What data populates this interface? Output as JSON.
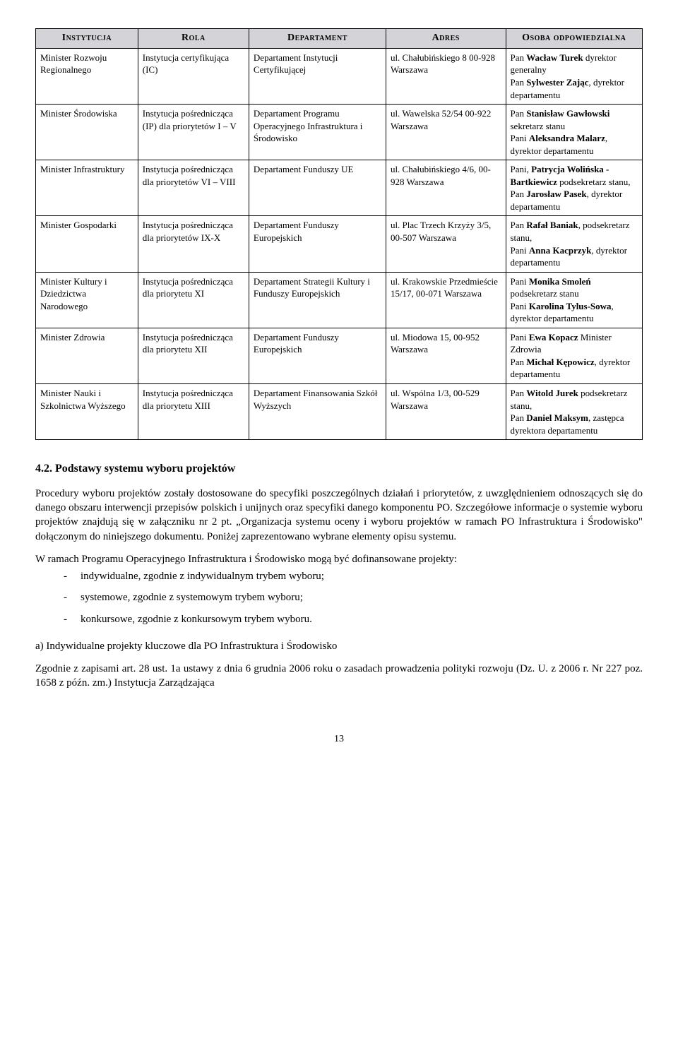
{
  "table": {
    "headers": [
      "Instytucja",
      "Rola",
      "Departament",
      "Adres",
      "Osoba odpowiedzialna"
    ],
    "rows": [
      {
        "instytucja": "Minister Rozwoju Regionalnego",
        "rola": "Instytucja certyfikująca (IC)",
        "departament": "Departament Instytucji Certyfikującej",
        "adres": "ul. Chałubińskiego 8 00-928 Warszawa",
        "osoba": [
          {
            "pre": "Pan ",
            "bold": "Wacław Turek",
            "post": " dyrektor generalny"
          },
          {
            "pre": "Pan ",
            "bold": "Sylwester Zając",
            "post": ", dyrektor departamentu"
          }
        ]
      },
      {
        "instytucja": "Minister Środowiska",
        "rola": "Instytucja pośrednicząca (IP) dla priorytetów I – V",
        "departament": "Departament Programu Operacyjnego Infrastruktura i Środowisko",
        "adres": "ul. Wawelska 52/54 00-922 Warszawa",
        "osoba": [
          {
            "pre": "Pan ",
            "bold": "Stanisław Gawłowski",
            "post": " sekretarz stanu"
          },
          {
            "pre": "Pani ",
            "bold": "Aleksandra Malarz",
            "post": ", dyrektor departamentu"
          }
        ]
      },
      {
        "instytucja": "Minister Infrastruktury",
        "rola": "Instytucja pośrednicząca dla priorytetów VI – VIII",
        "departament": "Departament Funduszy UE",
        "adres": "ul. Chałubińskiego 4/6, 00-928 Warszawa",
        "osoba": [
          {
            "pre": "Pani, ",
            "bold": "Patrycja Wolińska - Bartkiewicz",
            "post": " podsekretarz stanu,"
          },
          {
            "pre": "Pan ",
            "bold": "Jarosław Pasek",
            "post": ", dyrektor departamentu"
          }
        ]
      },
      {
        "instytucja": "Minister Gospodarki",
        "rola": "Instytucja pośrednicząca dla priorytetów IX-X",
        "departament": "Departament Funduszy Europejskich",
        "adres": "ul. Plac Trzech Krzyży 3/5, 00-507 Warszawa",
        "osoba": [
          {
            "pre": "Pan ",
            "bold": "Rafał Baniak",
            "post": ", podsekretarz stanu,"
          },
          {
            "pre": "Pani ",
            "bold": "Anna Kacprzyk",
            "post": ", dyrektor departamentu"
          }
        ]
      },
      {
        "instytucja": "Minister Kultury i Dziedzictwa Narodowego",
        "rola": "Instytucja pośrednicząca dla priorytetu XI",
        "departament": "Departament Strategii Kultury i Funduszy Europejskich",
        "adres": "ul. Krakowskie Przedmieście 15/17, 00-071 Warszawa",
        "osoba": [
          {
            "pre": "Pani ",
            "bold": "Monika Smoleń",
            "post": " podsekretarz stanu"
          },
          {
            "pre": "Pani ",
            "bold": "Karolina Tylus-Sowa",
            "post": ", dyrektor departamentu"
          }
        ]
      },
      {
        "instytucja": "Minister Zdrowia",
        "rola": "Instytucja pośrednicząca dla priorytetu XII",
        "departament": "Departament Funduszy Europejskich",
        "adres": "ul. Miodowa 15, 00-952 Warszawa",
        "osoba": [
          {
            "pre": "Pani ",
            "bold": "Ewa Kopacz",
            "post": " Minister Zdrowia"
          },
          {
            "pre": "Pan ",
            "bold": "Michał Kępowicz",
            "post": ", dyrektor departamentu"
          }
        ]
      },
      {
        "instytucja": "Minister Nauki i Szkolnictwa Wyższego",
        "rola": "Instytucja pośrednicząca dla priorytetu XIII",
        "departament": "Departament Finansowania Szkół Wyższych",
        "adres": "ul. Wspólna 1/3, 00-529 Warszawa",
        "osoba": [
          {
            "pre": "Pan ",
            "bold": "Witold Jurek",
            "post": " podsekretarz stanu,"
          },
          {
            "pre": "Pan ",
            "bold": "Daniel Maksym",
            "post": ", zastępca dyrektora departamentu"
          }
        ]
      }
    ]
  },
  "section_heading": "4.2. Podstawy systemu wyboru projektów",
  "para1": "Procedury wyboru projektów zostały dostosowane do specyfiki poszczególnych działań i priorytetów, z uwzględnieniem odnoszących się do danego obszaru interwencji przepisów polskich i unijnych oraz specyfiki danego komponentu PO. Szczegółowe informacje o systemie wyboru projektów znajdują się w załączniku nr 2 pt. „Organizacja systemu oceny i wyboru projektów w ramach PO Infrastruktura i Środowisko\" dołączonym do niniejszego dokumentu. Poniżej zaprezentowano wybrane elementy opisu systemu.",
  "para2": "W ramach Programu Operacyjnego Infrastruktura i Środowisko mogą być dofinansowane projekty:",
  "bullets": [
    "indywidualne, zgodnie z indywidualnym trybem wyboru;",
    "systemowe, zgodnie z systemowym trybem wyboru;",
    "konkursowe, zgodnie z konkursowym trybem wyboru."
  ],
  "sub_heading": "a) Indywidualne projekty kluczowe dla PO Infrastruktura i Środowisko",
  "para3": "Zgodnie z zapisami art. 28 ust. 1a ustawy z dnia 6 grudnia 2006 roku o zasadach prowadzenia polityki rozwoju (Dz. U. z 2006 r. Nr 227 poz. 1658 z późn. zm.) Instytucja Zarządzająca",
  "page_number": "13"
}
